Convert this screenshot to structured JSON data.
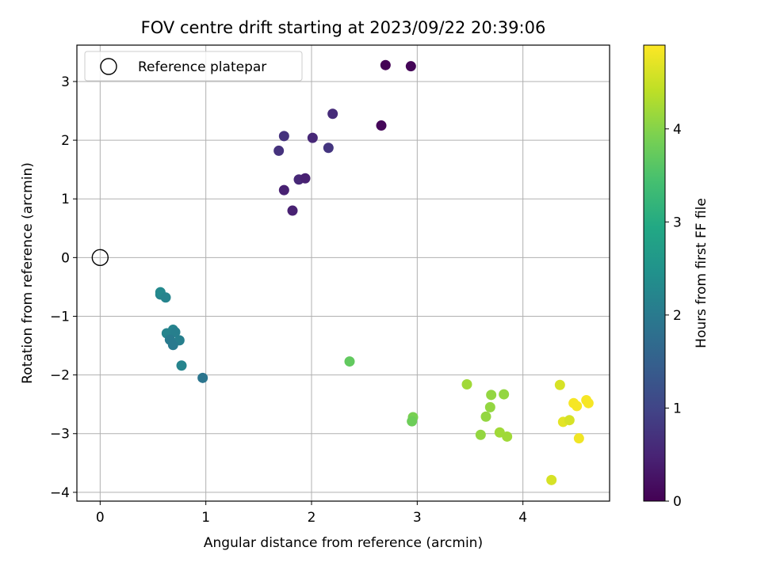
{
  "chart_data": {
    "type": "scatter",
    "title": "FOV centre drift starting at 2023/09/22 20:39:06",
    "xlabel": "Angular distance from reference (arcmin)",
    "ylabel": "Rotation from reference (arcmin)",
    "xlim": [
      -0.22,
      4.82
    ],
    "ylim": [
      -4.15,
      3.62
    ],
    "x_ticks": [
      0,
      1,
      2,
      3,
      4
    ],
    "y_ticks": [
      -4,
      -3,
      -2,
      -1,
      0,
      1,
      2,
      3
    ],
    "grid": true,
    "legend": {
      "placement": "top-left",
      "entries": [
        "Reference platepar"
      ]
    },
    "reference_point": {
      "x": 0,
      "y": 0
    },
    "colorbar": {
      "label": "Hours from first FF file",
      "range": [
        0,
        4.9
      ],
      "ticks": [
        0,
        1,
        2,
        3,
        4
      ],
      "colormap": "viridis"
    },
    "points": [
      {
        "x": 2.7,
        "y": 3.28,
        "c": 0.02
      },
      {
        "x": 2.94,
        "y": 3.26,
        "c": 0.05
      },
      {
        "x": 2.66,
        "y": 2.25,
        "c": 0.08
      },
      {
        "x": 2.2,
        "y": 2.45,
        "c": 0.6
      },
      {
        "x": 1.74,
        "y": 2.07,
        "c": 0.7
      },
      {
        "x": 2.01,
        "y": 2.04,
        "c": 0.55
      },
      {
        "x": 1.69,
        "y": 1.82,
        "c": 0.7
      },
      {
        "x": 2.16,
        "y": 1.87,
        "c": 0.75
      },
      {
        "x": 1.88,
        "y": 1.33,
        "c": 0.55
      },
      {
        "x": 1.94,
        "y": 1.35,
        "c": 0.45
      },
      {
        "x": 1.74,
        "y": 1.15,
        "c": 0.45
      },
      {
        "x": 1.82,
        "y": 0.8,
        "c": 0.45
      },
      {
        "x": 0.57,
        "y": -0.63,
        "c": 2.2
      },
      {
        "x": 0.57,
        "y": -0.59,
        "c": 2.3
      },
      {
        "x": 0.62,
        "y": -0.68,
        "c": 2.2
      },
      {
        "x": 0.69,
        "y": -1.23,
        "c": 2.2
      },
      {
        "x": 0.63,
        "y": -1.29,
        "c": 2.2
      },
      {
        "x": 0.71,
        "y": -1.27,
        "c": 2.1
      },
      {
        "x": 0.66,
        "y": -1.4,
        "c": 2.0
      },
      {
        "x": 0.75,
        "y": -1.41,
        "c": 2.1
      },
      {
        "x": 0.69,
        "y": -1.49,
        "c": 2.0
      },
      {
        "x": 0.77,
        "y": -1.84,
        "c": 2.2
      },
      {
        "x": 0.97,
        "y": -2.05,
        "c": 1.9
      },
      {
        "x": 2.36,
        "y": -1.77,
        "c": 3.7
      },
      {
        "x": 2.96,
        "y": -2.72,
        "c": 3.9
      },
      {
        "x": 2.95,
        "y": -2.79,
        "c": 3.8
      },
      {
        "x": 3.47,
        "y": -2.16,
        "c": 4.2
      },
      {
        "x": 3.7,
        "y": -2.34,
        "c": 4.1
      },
      {
        "x": 3.82,
        "y": -2.33,
        "c": 4.1
      },
      {
        "x": 3.69,
        "y": -2.55,
        "c": 4.1
      },
      {
        "x": 3.65,
        "y": -2.71,
        "c": 4.1
      },
      {
        "x": 3.6,
        "y": -3.02,
        "c": 4.1
      },
      {
        "x": 3.78,
        "y": -2.98,
        "c": 4.2
      },
      {
        "x": 3.85,
        "y": -3.05,
        "c": 4.2
      },
      {
        "x": 4.35,
        "y": -2.17,
        "c": 4.6
      },
      {
        "x": 4.48,
        "y": -2.48,
        "c": 4.85
      },
      {
        "x": 4.51,
        "y": -2.53,
        "c": 4.85
      },
      {
        "x": 4.6,
        "y": -2.43,
        "c": 4.85
      },
      {
        "x": 4.62,
        "y": -2.48,
        "c": 4.85
      },
      {
        "x": 4.38,
        "y": -2.8,
        "c": 4.7
      },
      {
        "x": 4.44,
        "y": -2.77,
        "c": 4.6
      },
      {
        "x": 4.53,
        "y": -3.08,
        "c": 4.8
      },
      {
        "x": 4.27,
        "y": -3.79,
        "c": 4.6
      }
    ]
  }
}
